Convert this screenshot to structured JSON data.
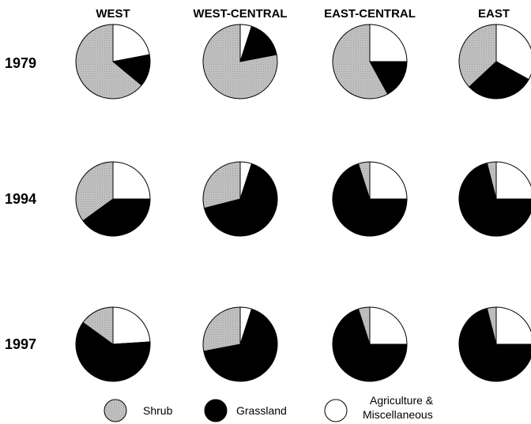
{
  "chart_data": {
    "type": "pie",
    "columns": [
      "WEST",
      "WEST-CENTRAL",
      "EAST-CENTRAL",
      "EAST"
    ],
    "rows": [
      "1979",
      "1994",
      "1997"
    ],
    "categories": [
      "Shrub",
      "Grassland",
      "Agriculture & Miscellaneous"
    ],
    "colors": {
      "shrub": "#bdbdbd",
      "grassland": "#000000",
      "agriculture": "#ffffff"
    },
    "legend": {
      "position": "bottom",
      "items": [
        {
          "key": "shrub",
          "lines": [
            "Shrub"
          ]
        },
        {
          "key": "grassland",
          "lines": [
            "Grassland"
          ]
        },
        {
          "key": "agriculture",
          "lines": [
            "Agriculture &",
            "Miscellaneous"
          ]
        }
      ]
    },
    "pies": [
      {
        "year": "1979",
        "region": "WEST",
        "agriculture": 22,
        "grassland": 14,
        "shrub": 64
      },
      {
        "year": "1979",
        "region": "WEST-CENTRAL",
        "agriculture": 5,
        "grassland": 17,
        "shrub": 78
      },
      {
        "year": "1979",
        "region": "EAST-CENTRAL",
        "agriculture": 25,
        "grassland": 17,
        "shrub": 58
      },
      {
        "year": "1979",
        "region": "EAST",
        "agriculture": 33,
        "grassland": 30,
        "shrub": 37
      },
      {
        "year": "1994",
        "region": "WEST",
        "agriculture": 25,
        "grassland": 40,
        "shrub": 35
      },
      {
        "year": "1994",
        "region": "WEST-CENTRAL",
        "agriculture": 5,
        "grassland": 66,
        "shrub": 29
      },
      {
        "year": "1994",
        "region": "EAST-CENTRAL",
        "agriculture": 25,
        "grassland": 70,
        "shrub": 5
      },
      {
        "year": "1994",
        "region": "EAST",
        "agriculture": 25,
        "grassland": 71,
        "shrub": 4
      },
      {
        "year": "1997",
        "region": "WEST",
        "agriculture": 24,
        "grassland": 61,
        "shrub": 15
      },
      {
        "year": "1997",
        "region": "WEST-CENTRAL",
        "agriculture": 5,
        "grassland": 67,
        "shrub": 28
      },
      {
        "year": "1997",
        "region": "EAST-CENTRAL",
        "agriculture": 25,
        "grassland": 70,
        "shrub": 5
      },
      {
        "year": "1997",
        "region": "EAST",
        "agriculture": 25,
        "grassland": 71,
        "shrub": 4
      }
    ]
  }
}
